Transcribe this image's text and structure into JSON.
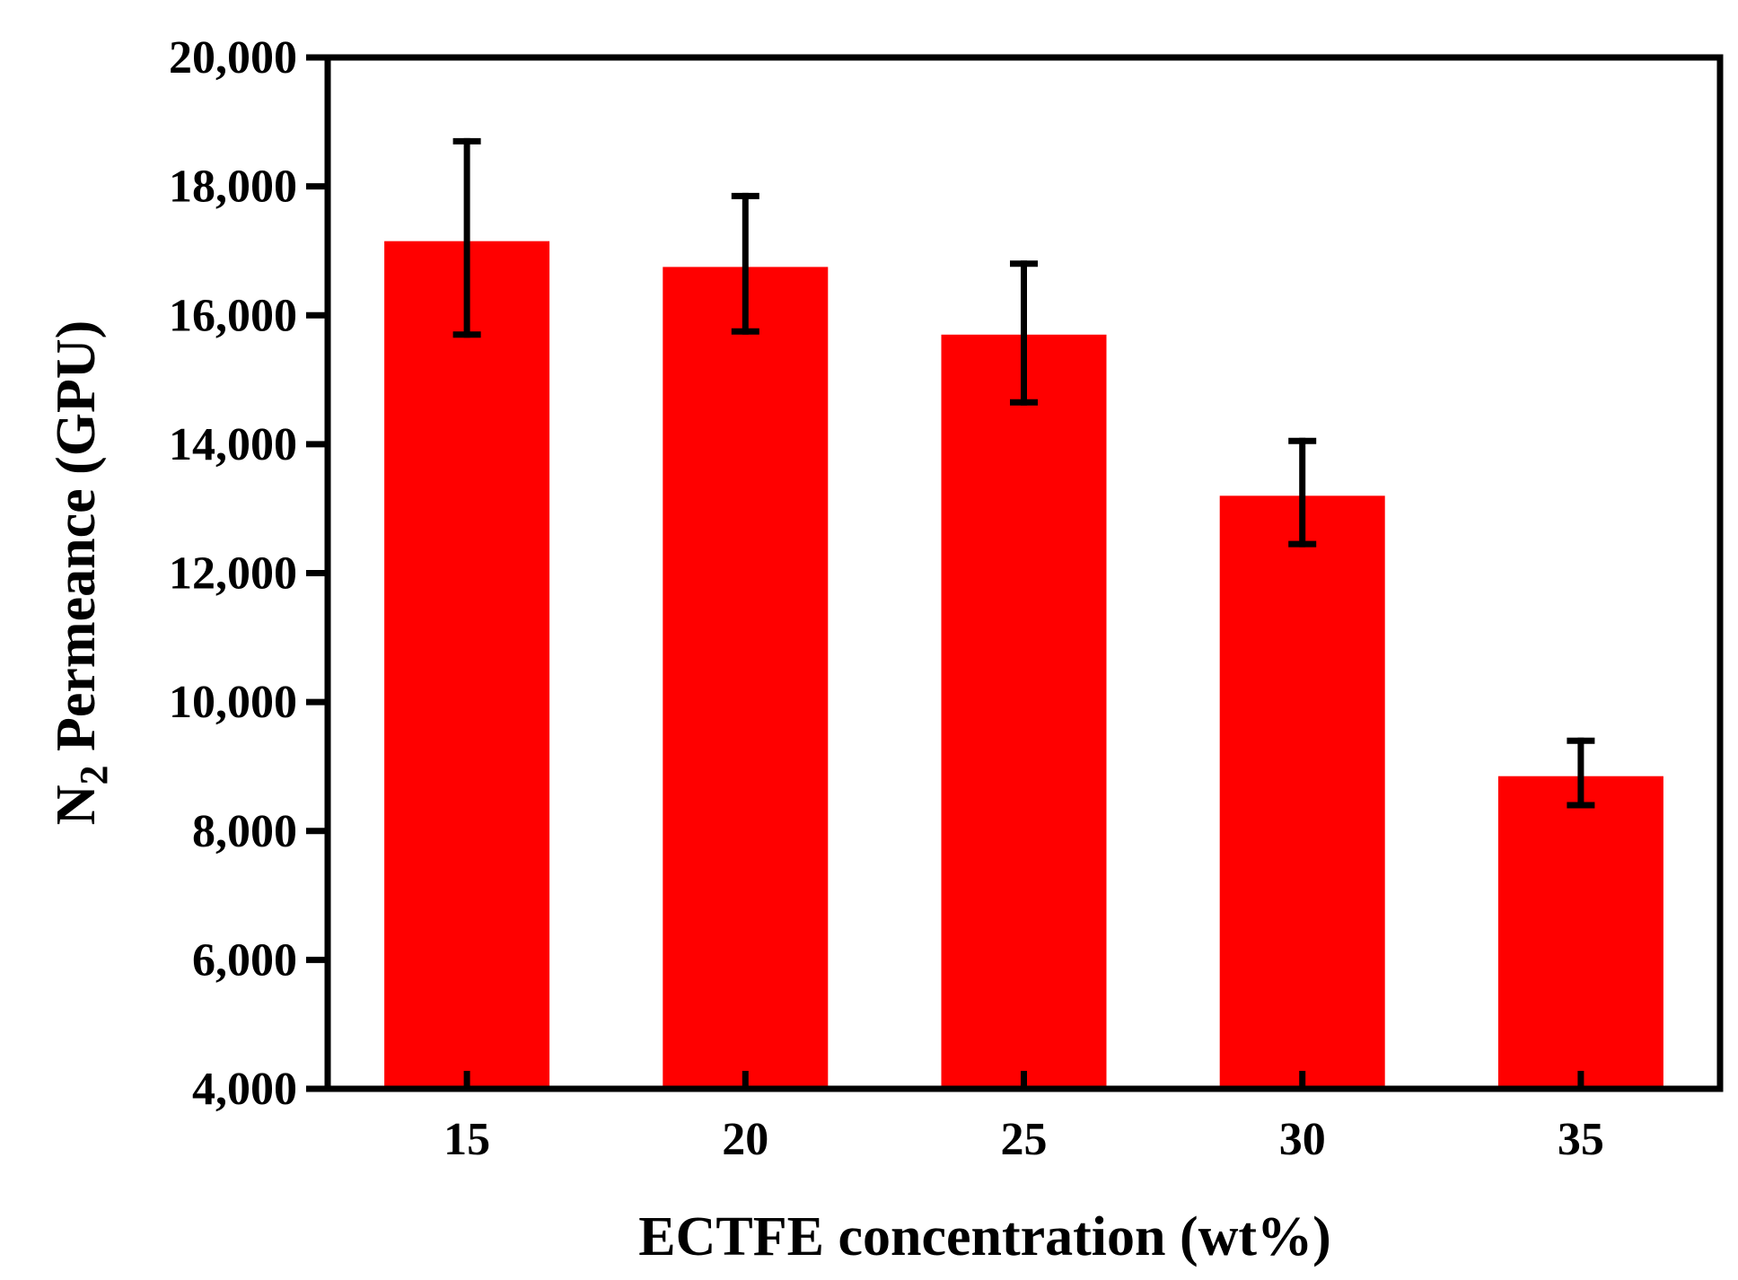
{
  "chart_data": {
    "type": "bar",
    "title": "",
    "xlabel": "ECTFE concentration (wt%)",
    "ylabel": {
      "prefix": "N",
      "subscript": "2",
      "suffix": " Permeance (GPU)"
    },
    "categories": [
      "15",
      "20",
      "25",
      "30",
      "35"
    ],
    "values": [
      17150,
      16750,
      15700,
      13200,
      8850
    ],
    "error_upper": [
      18700,
      17850,
      16800,
      14050,
      9400
    ],
    "error_lower": [
      15700,
      15750,
      14650,
      12450,
      8400
    ],
    "ylim": [
      4000,
      20000
    ],
    "yticks": [
      4000,
      6000,
      8000,
      10000,
      12000,
      14000,
      16000,
      18000,
      20000
    ],
    "ytick_labels": [
      "4,000",
      "6,000",
      "8,000",
      "10,000",
      "12,000",
      "14,000",
      "16,000",
      "18,000",
      "20,000"
    ],
    "bar_color": "#ff0000",
    "error_color": "#000000",
    "grid": false,
    "legend": "none"
  }
}
